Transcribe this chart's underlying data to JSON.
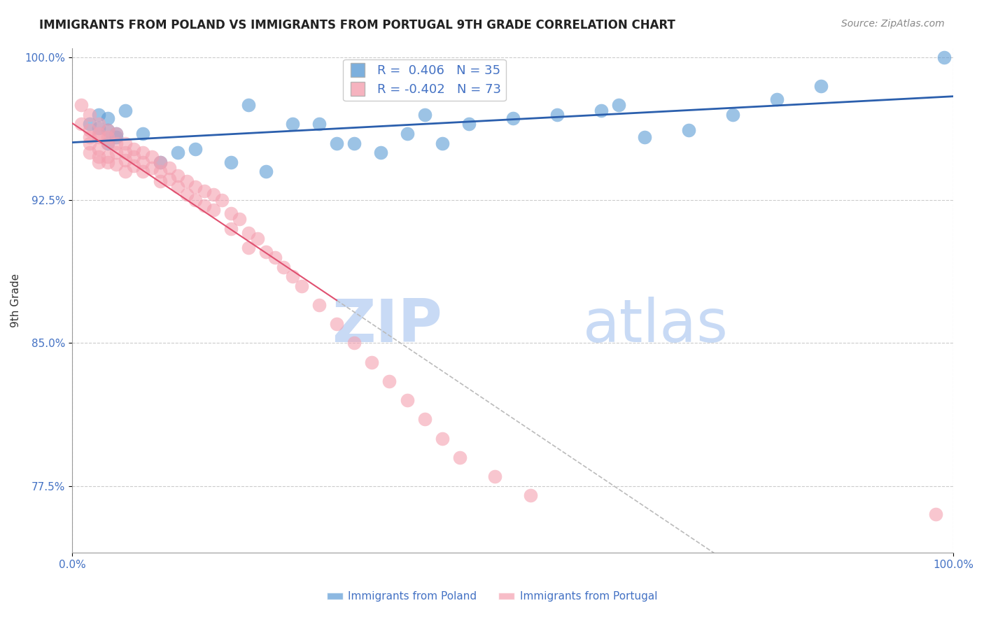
{
  "title": "IMMIGRANTS FROM POLAND VS IMMIGRANTS FROM PORTUGAL 9TH GRADE CORRELATION CHART",
  "source": "Source: ZipAtlas.com",
  "xlabel_bottom": "Immigrants from Poland",
  "xlabel_bottom2": "Immigrants from Portugal",
  "ylabel": "9th Grade",
  "R_poland": 0.406,
  "N_poland": 35,
  "R_portugal": -0.402,
  "N_portugal": 73,
  "xlim": [
    0.0,
    1.0
  ],
  "ylim": [
    0.74,
    1.005
  ],
  "yticks": [
    0.775,
    0.85,
    0.925,
    1.0
  ],
  "ytick_labels": [
    "77.5%",
    "85.0%",
    "92.5%",
    "100.0%"
  ],
  "xticks": [
    0.0,
    1.0
  ],
  "xtick_labels": [
    "0.0%",
    "100.0%"
  ],
  "color_poland": "#5b9bd5",
  "color_portugal": "#f4a0b0",
  "line_color_poland": "#2b5fad",
  "line_color_portugal": "#e05070",
  "watermark_zip": "ZIP",
  "watermark_atlas": "atlas",
  "watermark_color": "#c8daf5",
  "poland_x": [
    0.02,
    0.03,
    0.04,
    0.04,
    0.05,
    0.06,
    0.04,
    0.05,
    0.03,
    0.08,
    0.1,
    0.12,
    0.14,
    0.18,
    0.22,
    0.28,
    0.32,
    0.38,
    0.4,
    0.42,
    0.2,
    0.25,
    0.3,
    0.35,
    0.45,
    0.5,
    0.55,
    0.6,
    0.62,
    0.65,
    0.7,
    0.75,
    0.8,
    0.85,
    0.99
  ],
  "poland_y": [
    0.965,
    0.97,
    0.968,
    0.962,
    0.96,
    0.972,
    0.955,
    0.958,
    0.963,
    0.96,
    0.945,
    0.95,
    0.952,
    0.945,
    0.94,
    0.965,
    0.955,
    0.96,
    0.97,
    0.955,
    0.975,
    0.965,
    0.955,
    0.95,
    0.965,
    0.968,
    0.97,
    0.972,
    0.975,
    0.958,
    0.962,
    0.97,
    0.978,
    0.985,
    1.0
  ],
  "portugal_x": [
    0.01,
    0.01,
    0.02,
    0.02,
    0.02,
    0.02,
    0.02,
    0.03,
    0.03,
    0.03,
    0.03,
    0.03,
    0.03,
    0.04,
    0.04,
    0.04,
    0.04,
    0.04,
    0.05,
    0.05,
    0.05,
    0.05,
    0.06,
    0.06,
    0.06,
    0.06,
    0.07,
    0.07,
    0.07,
    0.08,
    0.08,
    0.08,
    0.09,
    0.09,
    0.1,
    0.1,
    0.1,
    0.11,
    0.11,
    0.12,
    0.12,
    0.13,
    0.13,
    0.14,
    0.14,
    0.15,
    0.15,
    0.16,
    0.16,
    0.17,
    0.18,
    0.18,
    0.19,
    0.2,
    0.2,
    0.21,
    0.22,
    0.23,
    0.24,
    0.25,
    0.26,
    0.28,
    0.3,
    0.32,
    0.34,
    0.36,
    0.38,
    0.4,
    0.42,
    0.44,
    0.48,
    0.52,
    0.98
  ],
  "portugal_y": [
    0.975,
    0.965,
    0.97,
    0.962,
    0.958,
    0.955,
    0.95,
    0.965,
    0.96,
    0.958,
    0.952,
    0.948,
    0.945,
    0.962,
    0.958,
    0.955,
    0.948,
    0.945,
    0.96,
    0.955,
    0.95,
    0.944,
    0.955,
    0.95,
    0.946,
    0.94,
    0.952,
    0.948,
    0.943,
    0.95,
    0.945,
    0.94,
    0.948,
    0.942,
    0.945,
    0.94,
    0.935,
    0.942,
    0.936,
    0.938,
    0.932,
    0.935,
    0.928,
    0.932,
    0.925,
    0.93,
    0.922,
    0.928,
    0.92,
    0.925,
    0.918,
    0.91,
    0.915,
    0.908,
    0.9,
    0.905,
    0.898,
    0.895,
    0.89,
    0.885,
    0.88,
    0.87,
    0.86,
    0.85,
    0.84,
    0.83,
    0.82,
    0.81,
    0.8,
    0.79,
    0.78,
    0.77,
    0.76
  ]
}
